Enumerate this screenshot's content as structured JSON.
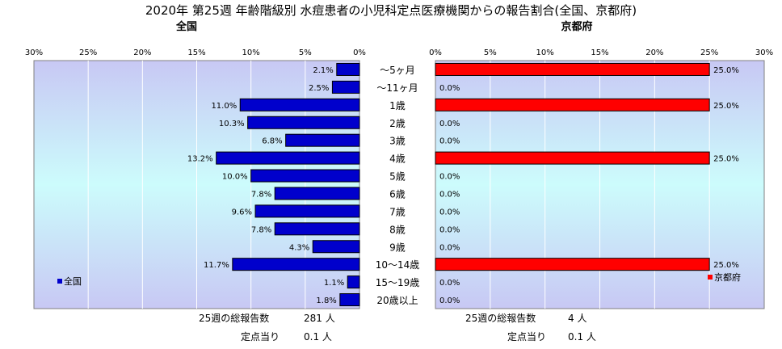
{
  "title": "2020年 第25週 年齢階級別 水痘患者の小児科定点医療機関からの報告割合(全国、京都府)",
  "categories": [
    "～5ヶ月",
    "～11ヶ月",
    "1歳",
    "2歳",
    "3歳",
    "4歳",
    "5歳",
    "6歳",
    "7歳",
    "8歳",
    "9歳",
    "10～14歳",
    "15～19歳",
    "20歳以上"
  ],
  "chart_data": [
    {
      "type": "bar",
      "orientation": "horizontal",
      "title": "全国",
      "axis_reversed": true,
      "xlim": [
        0,
        30
      ],
      "ticks": [
        "0%",
        "5%",
        "10%",
        "15%",
        "20%",
        "25%",
        "30%"
      ],
      "grid": true,
      "legend": "bottom-left",
      "categories": [
        "～5ヶ月",
        "～11ヶ月",
        "1歳",
        "2歳",
        "3歳",
        "4歳",
        "5歳",
        "6歳",
        "7歳",
        "8歳",
        "9歳",
        "10～14歳",
        "15～19歳",
        "20歳以上"
      ],
      "series": [
        {
          "name": "全国",
          "color": "#0000cc",
          "values": [
            2.1,
            2.5,
            11.0,
            10.3,
            6.8,
            13.2,
            10.0,
            7.8,
            9.6,
            7.8,
            4.3,
            11.7,
            1.1,
            1.8
          ],
          "labels": [
            "2.1%",
            "2.5%",
            "11.0%",
            "10.3%",
            "6.8%",
            "13.2%",
            "10.0%",
            "7.8%",
            "9.6%",
            "7.8%",
            "4.3%",
            "11.7%",
            "1.1%",
            "1.8%"
          ]
        }
      ]
    },
    {
      "type": "bar",
      "orientation": "horizontal",
      "title": "京都府",
      "xlim": [
        0,
        30
      ],
      "ticks": [
        "0%",
        "5%",
        "10%",
        "15%",
        "20%",
        "25%",
        "30%"
      ],
      "grid": true,
      "legend": "bottom-right",
      "categories": [
        "～5ヶ月",
        "～11ヶ月",
        "1歳",
        "2歳",
        "3歳",
        "4歳",
        "5歳",
        "6歳",
        "7歳",
        "8歳",
        "9歳",
        "10～14歳",
        "15～19歳",
        "20歳以上"
      ],
      "series": [
        {
          "name": "京都府",
          "color": "#ff0000",
          "values": [
            25.0,
            0,
            25.0,
            0,
            0,
            25.0,
            0,
            0,
            0,
            0,
            0,
            25.0,
            0,
            0
          ],
          "labels": [
            "25.0%",
            "0.0%",
            "25.0%",
            "0.0%",
            "0.0%",
            "25.0%",
            "0.0%",
            "0.0%",
            "0.0%",
            "0.0%",
            "0.0%",
            "25.0%",
            "0.0%",
            "0.0%"
          ]
        }
      ]
    }
  ],
  "footer": {
    "national": {
      "total_label": "25週の総報告数",
      "total_value": "281 人",
      "per_label": "定点当り",
      "per_value": "0.1 人"
    },
    "kyoto": {
      "total_label": "25週の総報告数",
      "total_value": "4 人",
      "per_label": "定点当り",
      "per_value": "0.1 人"
    }
  }
}
